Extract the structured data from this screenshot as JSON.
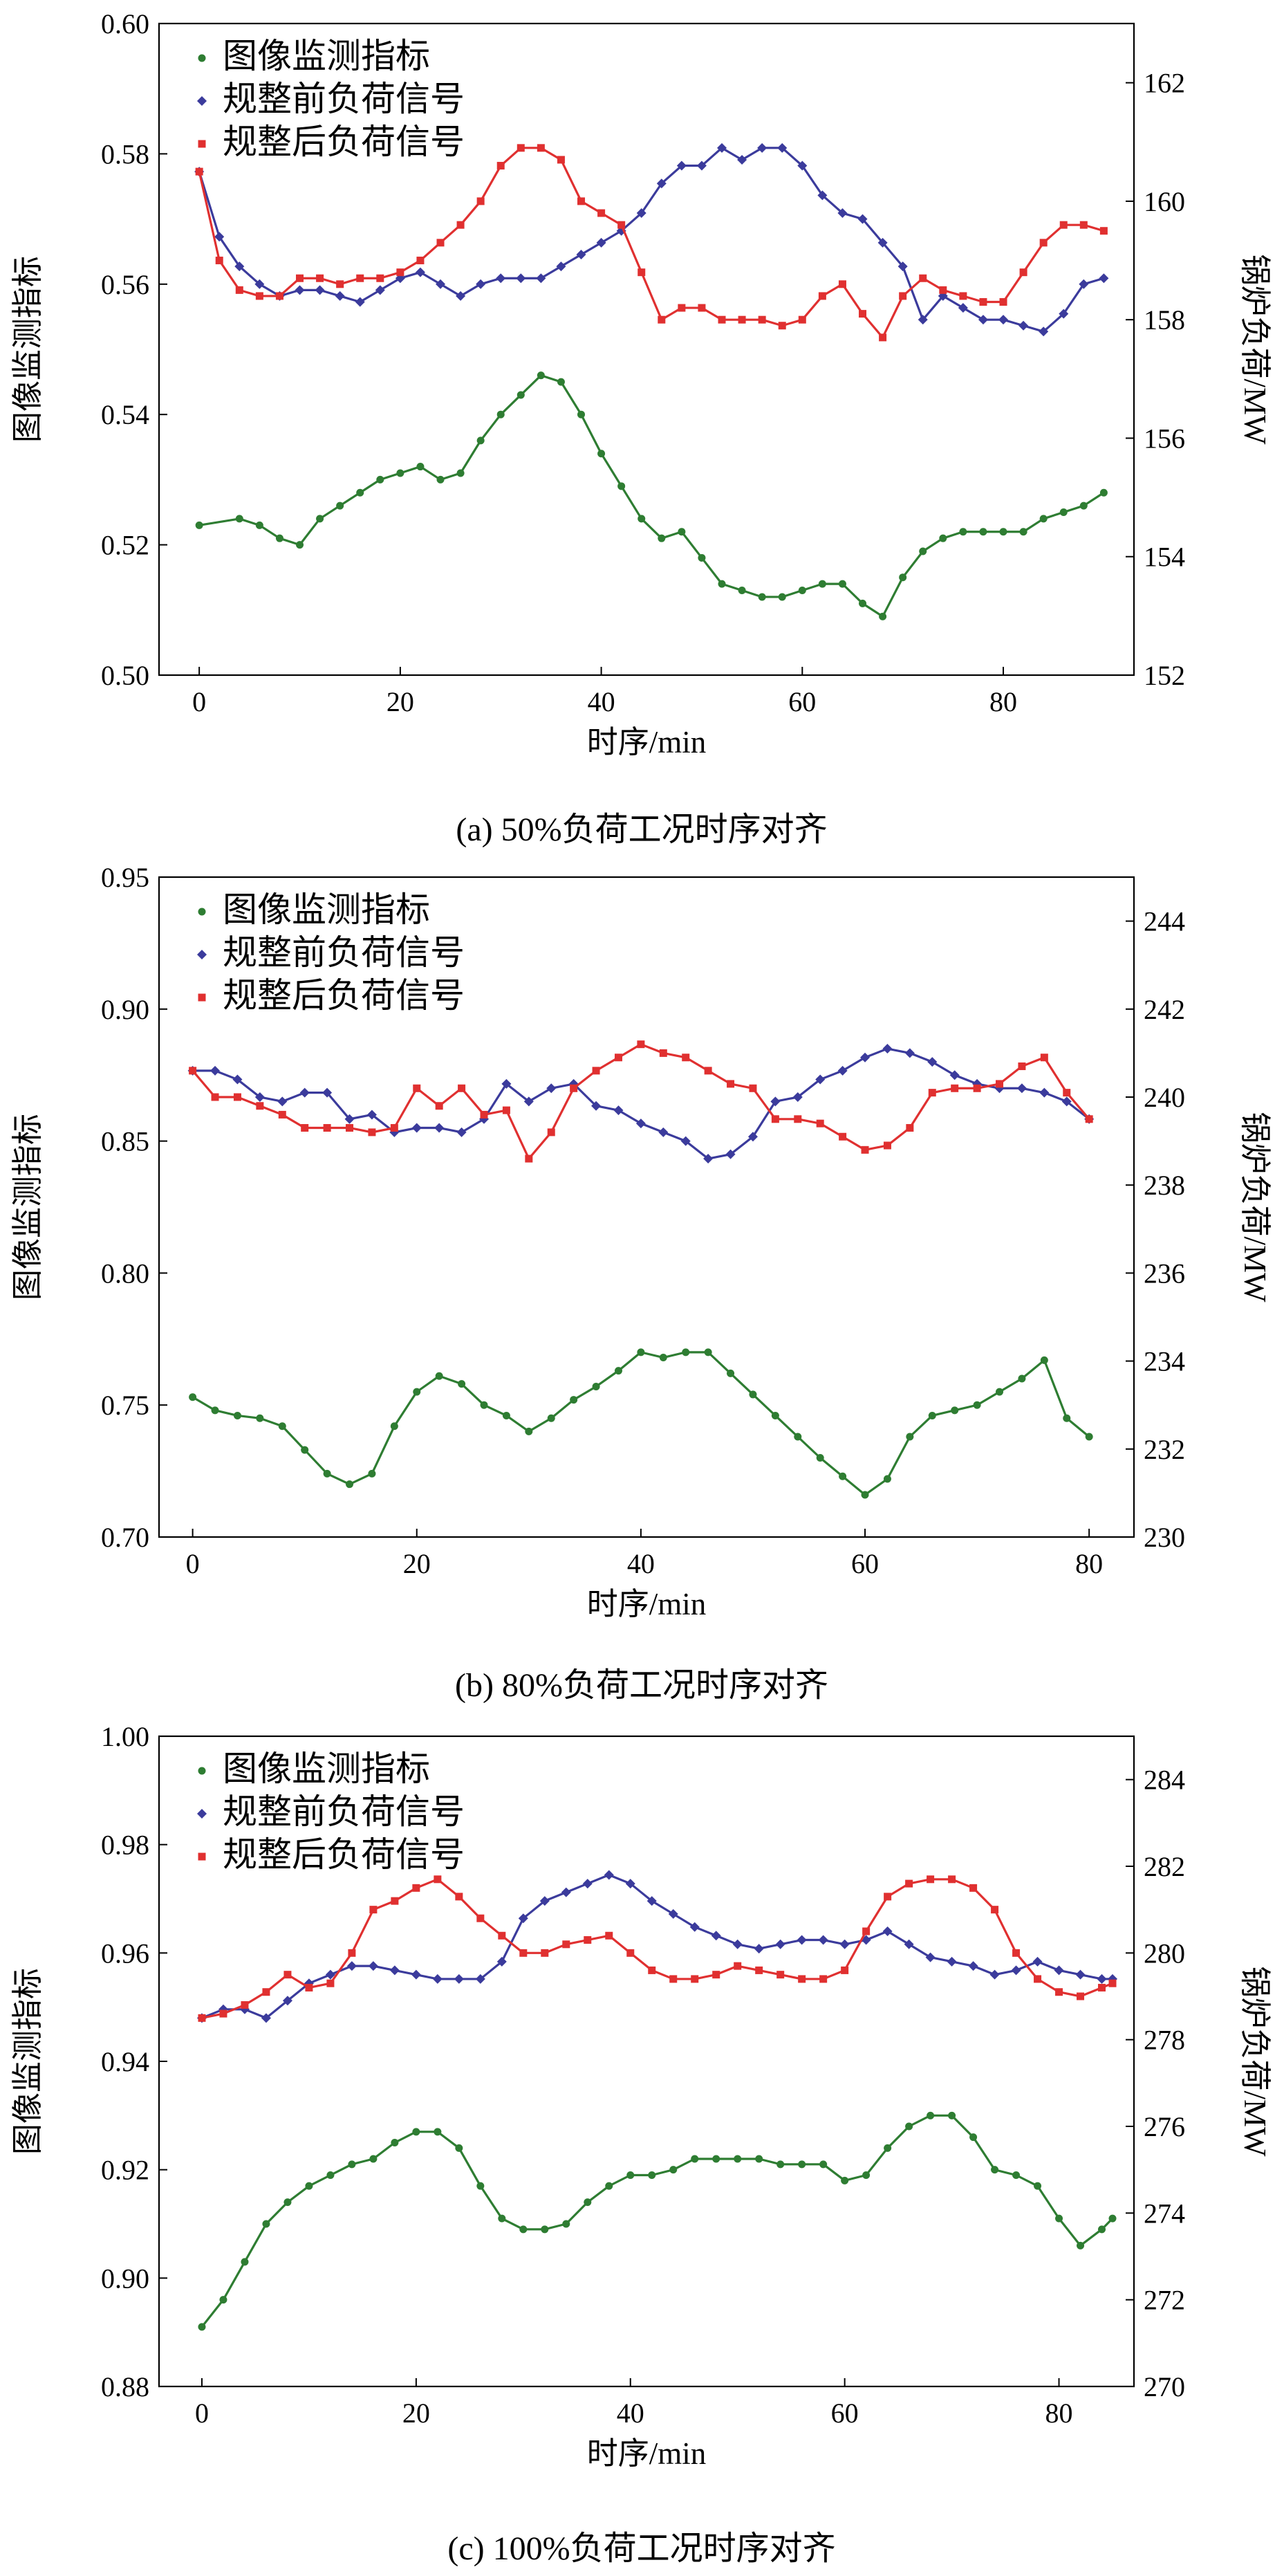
{
  "chart_data": [
    {
      "type": "line",
      "caption": "(a) 50%负荷工况时序对齐",
      "xlabel": "时序/min",
      "ylabel": "图像监测指标",
      "y2label": "锅炉负荷/MW",
      "xlim": [
        -4,
        93
      ],
      "ylim": [
        0.5,
        0.6
      ],
      "y2lim": [
        152,
        163
      ],
      "xticks": [
        0,
        20,
        40,
        60,
        80
      ],
      "yticks": [
        0.5,
        0.52,
        0.54,
        0.56,
        0.58,
        0.6
      ],
      "ytick_labels": [
        "0.50",
        "0.52",
        "0.54",
        "0.56",
        "0.58",
        "0.60"
      ],
      "y2ticks": [
        152,
        154,
        156,
        158,
        160,
        162
      ],
      "legend_position": "top-left",
      "series": [
        {
          "name": "图像监测指标",
          "axis": "left",
          "color": "#2e7d32",
          "marker": "circle",
          "x": [
            0,
            4,
            6,
            8,
            10,
            12,
            14,
            16,
            18,
            20,
            22,
            24,
            26,
            28,
            30,
            32,
            34,
            36,
            38,
            40,
            42,
            44,
            46,
            48,
            50,
            52,
            54,
            56,
            58,
            60,
            62,
            64,
            66,
            68,
            70,
            72,
            74,
            76,
            78,
            80,
            82,
            84,
            86,
            88,
            90
          ],
          "values": [
            0.523,
            0.524,
            0.523,
            0.521,
            0.52,
            0.524,
            0.526,
            0.528,
            0.53,
            0.531,
            0.532,
            0.53,
            0.531,
            0.536,
            0.54,
            0.543,
            0.546,
            0.545,
            0.54,
            0.534,
            0.529,
            0.524,
            0.521,
            0.522,
            0.518,
            0.514,
            0.513,
            0.512,
            0.512,
            0.513,
            0.514,
            0.514,
            0.511,
            0.509,
            0.515,
            0.519,
            0.521,
            0.522,
            0.522,
            0.522,
            0.522,
            0.524,
            0.525,
            0.526,
            0.528
          ]
        },
        {
          "name": "规整前负荷信号",
          "axis": "right",
          "color": "#3b3b9c",
          "marker": "diamond",
          "x": [
            0,
            2,
            4,
            6,
            8,
            10,
            12,
            14,
            16,
            18,
            20,
            22,
            24,
            26,
            28,
            30,
            32,
            34,
            36,
            38,
            40,
            42,
            44,
            46,
            48,
            50,
            52,
            54,
            56,
            58,
            60,
            62,
            64,
            66,
            68,
            70,
            72,
            74,
            76,
            78,
            80,
            82,
            84,
            86,
            88,
            90
          ],
          "values": [
            160.5,
            159.4,
            158.9,
            158.6,
            158.4,
            158.5,
            158.5,
            158.4,
            158.3,
            158.5,
            158.7,
            158.8,
            158.6,
            158.4,
            158.6,
            158.7,
            158.7,
            158.7,
            158.9,
            159.1,
            159.3,
            159.5,
            159.8,
            160.3,
            160.6,
            160.6,
            160.9,
            160.7,
            160.9,
            160.9,
            160.6,
            160.1,
            159.8,
            159.7,
            159.3,
            158.9,
            158.0,
            158.4,
            158.2,
            158.0,
            158.0,
            157.9,
            157.8,
            158.1,
            158.6,
            158.7
          ]
        },
        {
          "name": "规整后负荷信号",
          "axis": "right",
          "color": "#e03030",
          "marker": "square",
          "x": [
            0,
            2,
            4,
            6,
            8,
            10,
            12,
            14,
            16,
            18,
            20,
            22,
            24,
            26,
            28,
            30,
            32,
            34,
            36,
            38,
            40,
            42,
            44,
            46,
            48,
            50,
            52,
            54,
            56,
            58,
            60,
            62,
            64,
            66,
            68,
            70,
            72,
            74,
            76,
            78,
            80,
            82,
            84,
            86,
            88,
            90
          ],
          "values": [
            160.5,
            159.0,
            158.5,
            158.4,
            158.4,
            158.7,
            158.7,
            158.6,
            158.7,
            158.7,
            158.8,
            159.0,
            159.3,
            159.6,
            160.0,
            160.6,
            160.9,
            160.9,
            160.7,
            160.0,
            159.8,
            159.6,
            158.8,
            158.0,
            158.2,
            158.2,
            158.0,
            158.0,
            158.0,
            157.9,
            158.0,
            158.4,
            158.6,
            158.1,
            157.7,
            158.4,
            158.7,
            158.5,
            158.4,
            158.3,
            158.3,
            158.8,
            159.3,
            159.6,
            159.6,
            159.5
          ]
        }
      ]
    },
    {
      "type": "line",
      "caption": "(b) 80%负荷工况时序对齐",
      "xlabel": "时序/min",
      "ylabel": "图像监测指标",
      "y2label": "锅炉负荷/MW",
      "xlim": [
        -3,
        84
      ],
      "ylim": [
        0.7,
        0.95
      ],
      "y2lim": [
        230,
        245
      ],
      "xticks": [
        0,
        20,
        40,
        60,
        80
      ],
      "yticks": [
        0.7,
        0.75,
        0.8,
        0.85,
        0.9,
        0.95
      ],
      "ytick_labels": [
        "0.70",
        "0.75",
        "0.80",
        "0.85",
        "0.90",
        "0.95"
      ],
      "y2ticks": [
        230,
        232,
        234,
        236,
        238,
        240,
        242,
        244
      ],
      "legend_position": "top-left",
      "series": [
        {
          "name": "图像监测指标",
          "axis": "left",
          "color": "#2e7d32",
          "marker": "circle",
          "x": [
            0,
            2,
            4,
            6,
            8,
            10,
            12,
            14,
            16,
            18,
            20,
            22,
            24,
            26,
            28,
            30,
            32,
            34,
            36,
            38,
            40,
            42,
            44,
            46,
            48,
            50,
            52,
            54,
            56,
            58,
            60,
            62,
            64,
            66,
            68,
            70,
            72,
            74,
            76,
            78,
            80
          ],
          "values": [
            0.753,
            0.748,
            0.746,
            0.745,
            0.742,
            0.733,
            0.724,
            0.72,
            0.724,
            0.742,
            0.755,
            0.761,
            0.758,
            0.75,
            0.746,
            0.74,
            0.745,
            0.752,
            0.757,
            0.763,
            0.77,
            0.768,
            0.77,
            0.77,
            0.762,
            0.754,
            0.746,
            0.738,
            0.73,
            0.723,
            0.716,
            0.722,
            0.738,
            0.746,
            0.748,
            0.75,
            0.755,
            0.76,
            0.767,
            0.745,
            0.738
          ]
        },
        {
          "name": "规整前负荷信号",
          "axis": "right",
          "color": "#3b3b9c",
          "marker": "diamond",
          "x": [
            0,
            2,
            4,
            6,
            8,
            10,
            12,
            14,
            16,
            18,
            20,
            22,
            24,
            26,
            28,
            30,
            32,
            34,
            36,
            38,
            40,
            42,
            44,
            46,
            48,
            50,
            52,
            54,
            56,
            58,
            60,
            62,
            64,
            66,
            68,
            70,
            72,
            74,
            76,
            78,
            80
          ],
          "values": [
            240.6,
            240.6,
            240.4,
            240.0,
            239.9,
            240.1,
            240.1,
            239.5,
            239.6,
            239.2,
            239.3,
            239.3,
            239.2,
            239.5,
            240.3,
            239.9,
            240.2,
            240.3,
            239.8,
            239.7,
            239.4,
            239.2,
            239.0,
            238.6,
            238.7,
            239.1,
            239.9,
            240.0,
            240.4,
            240.6,
            240.9,
            241.1,
            241.0,
            240.8,
            240.5,
            240.3,
            240.2,
            240.2,
            240.1,
            239.9,
            239.5
          ]
        },
        {
          "name": "规整后负荷信号",
          "axis": "right",
          "color": "#e03030",
          "marker": "square",
          "x": [
            0,
            2,
            4,
            6,
            8,
            10,
            12,
            14,
            16,
            18,
            20,
            22,
            24,
            26,
            28,
            30,
            32,
            34,
            36,
            38,
            40,
            42,
            44,
            46,
            48,
            50,
            52,
            54,
            56,
            58,
            60,
            62,
            64,
            66,
            68,
            70,
            72,
            74,
            76,
            78,
            80
          ],
          "values": [
            240.6,
            240.0,
            240.0,
            239.8,
            239.6,
            239.3,
            239.3,
            239.3,
            239.2,
            239.3,
            240.2,
            239.8,
            240.2,
            239.6,
            239.7,
            238.6,
            239.2,
            240.2,
            240.6,
            240.9,
            241.2,
            241.0,
            240.9,
            240.6,
            240.3,
            240.2,
            239.5,
            239.5,
            239.4,
            239.1,
            238.8,
            238.9,
            239.3,
            240.1,
            240.2,
            240.2,
            240.3,
            240.7,
            240.9,
            240.1,
            239.5
          ]
        }
      ]
    },
    {
      "type": "line",
      "caption": "(c) 100%负荷工况时序对齐",
      "xlabel": "时序/min",
      "ylabel": "图像监测指标",
      "y2label": "锅炉负荷/MW",
      "xlim": [
        -4,
        87
      ],
      "ylim": [
        0.88,
        1.0
      ],
      "y2lim": [
        270,
        285
      ],
      "xticks": [
        0,
        20,
        40,
        60,
        80
      ],
      "yticks": [
        0.88,
        0.9,
        0.92,
        0.94,
        0.96,
        0.98,
        1.0
      ],
      "ytick_labels": [
        "0.88",
        "0.90",
        "0.92",
        "0.94",
        "0.96",
        "0.98",
        "1.00"
      ],
      "y2ticks": [
        270,
        272,
        274,
        276,
        278,
        280,
        282,
        284
      ],
      "legend_position": "top-left",
      "series": [
        {
          "name": "图像监测指标",
          "axis": "left",
          "color": "#2e7d32",
          "marker": "circle",
          "x": [
            0,
            2,
            4,
            6,
            8,
            10,
            12,
            14,
            16,
            18,
            20,
            22,
            24,
            26,
            28,
            30,
            32,
            34,
            36,
            38,
            40,
            42,
            44,
            46,
            48,
            50,
            52,
            54,
            56,
            58,
            60,
            62,
            64,
            66,
            68,
            70,
            72,
            74,
            76,
            78,
            80,
            82,
            84,
            85
          ],
          "values": [
            0.891,
            0.896,
            0.903,
            0.91,
            0.914,
            0.917,
            0.919,
            0.921,
            0.922,
            0.925,
            0.927,
            0.927,
            0.924,
            0.917,
            0.911,
            0.909,
            0.909,
            0.91,
            0.914,
            0.917,
            0.919,
            0.919,
            0.92,
            0.922,
            0.922,
            0.922,
            0.922,
            0.921,
            0.921,
            0.921,
            0.918,
            0.919,
            0.924,
            0.928,
            0.93,
            0.93,
            0.926,
            0.92,
            0.919,
            0.917,
            0.911,
            0.906,
            0.909,
            0.911
          ]
        },
        {
          "name": "规整前负荷信号",
          "axis": "right",
          "color": "#3b3b9c",
          "marker": "diamond",
          "x": [
            0,
            2,
            4,
            6,
            8,
            10,
            12,
            14,
            16,
            18,
            20,
            22,
            24,
            26,
            28,
            30,
            32,
            34,
            36,
            38,
            40,
            42,
            44,
            46,
            48,
            50,
            52,
            54,
            56,
            58,
            60,
            62,
            64,
            66,
            68,
            70,
            72,
            74,
            76,
            78,
            80,
            82,
            84,
            85
          ],
          "values": [
            278.5,
            278.7,
            278.7,
            278.5,
            278.9,
            279.3,
            279.5,
            279.7,
            279.7,
            279.6,
            279.5,
            279.4,
            279.4,
            279.4,
            279.8,
            280.8,
            281.2,
            281.4,
            281.6,
            281.8,
            281.6,
            281.2,
            280.9,
            280.6,
            280.4,
            280.2,
            280.1,
            280.2,
            280.3,
            280.3,
            280.2,
            280.3,
            280.5,
            280.2,
            279.9,
            279.8,
            279.7,
            279.5,
            279.6,
            279.8,
            279.6,
            279.5,
            279.4,
            279.4
          ]
        },
        {
          "name": "规整后负荷信号",
          "axis": "right",
          "color": "#e03030",
          "marker": "square",
          "x": [
            0,
            2,
            4,
            6,
            8,
            10,
            12,
            14,
            16,
            18,
            20,
            22,
            24,
            26,
            28,
            30,
            32,
            34,
            36,
            38,
            40,
            42,
            44,
            46,
            48,
            50,
            52,
            54,
            56,
            58,
            60,
            62,
            64,
            66,
            68,
            70,
            72,
            74,
            76,
            78,
            80,
            82,
            84,
            85
          ],
          "values": [
            278.5,
            278.6,
            278.8,
            279.1,
            279.5,
            279.2,
            279.3,
            280.0,
            281.0,
            281.2,
            281.5,
            281.7,
            281.3,
            280.8,
            280.4,
            280.0,
            280.0,
            280.2,
            280.3,
            280.4,
            280.0,
            279.6,
            279.4,
            279.4,
            279.5,
            279.7,
            279.6,
            279.5,
            279.4,
            279.4,
            279.6,
            280.5,
            281.3,
            281.6,
            281.7,
            281.7,
            281.5,
            281.0,
            280.0,
            279.4,
            279.1,
            279.0,
            279.2,
            279.3
          ]
        }
      ]
    }
  ]
}
